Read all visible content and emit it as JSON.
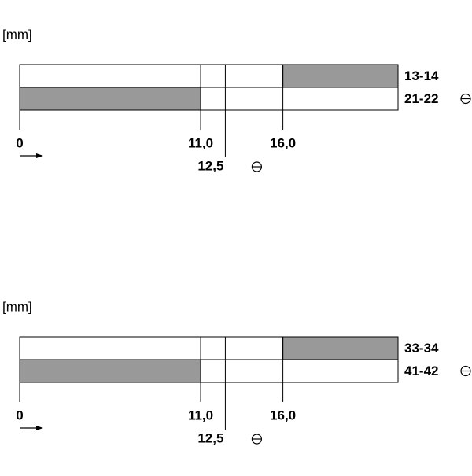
{
  "panels": [
    {
      "unit": "[mm]",
      "xlim": [
        0,
        23
      ],
      "ticks": [
        {
          "value": 0,
          "label": "0"
        },
        {
          "value": 11,
          "label": "11,0"
        },
        {
          "value": 12.5,
          "label": "12,5"
        },
        {
          "value": 16,
          "label": "16,0"
        }
      ],
      "rows": [
        {
          "label": "13-14",
          "shaded": [
            16,
            23
          ]
        },
        {
          "label": "21-22",
          "shaded": [
            0,
            11
          ]
        }
      ]
    },
    {
      "unit": "[mm]",
      "xlim": [
        0,
        23
      ],
      "ticks": [
        {
          "value": 0,
          "label": "0"
        },
        {
          "value": 11,
          "label": "11,0"
        },
        {
          "value": 12.5,
          "label": "12,5"
        },
        {
          "value": 16,
          "label": "16,0"
        }
      ],
      "rows": [
        {
          "label": "33-34",
          "shaded": [
            16,
            23
          ]
        },
        {
          "label": "41-42",
          "shaded": [
            0,
            11
          ]
        }
      ]
    }
  ]
}
